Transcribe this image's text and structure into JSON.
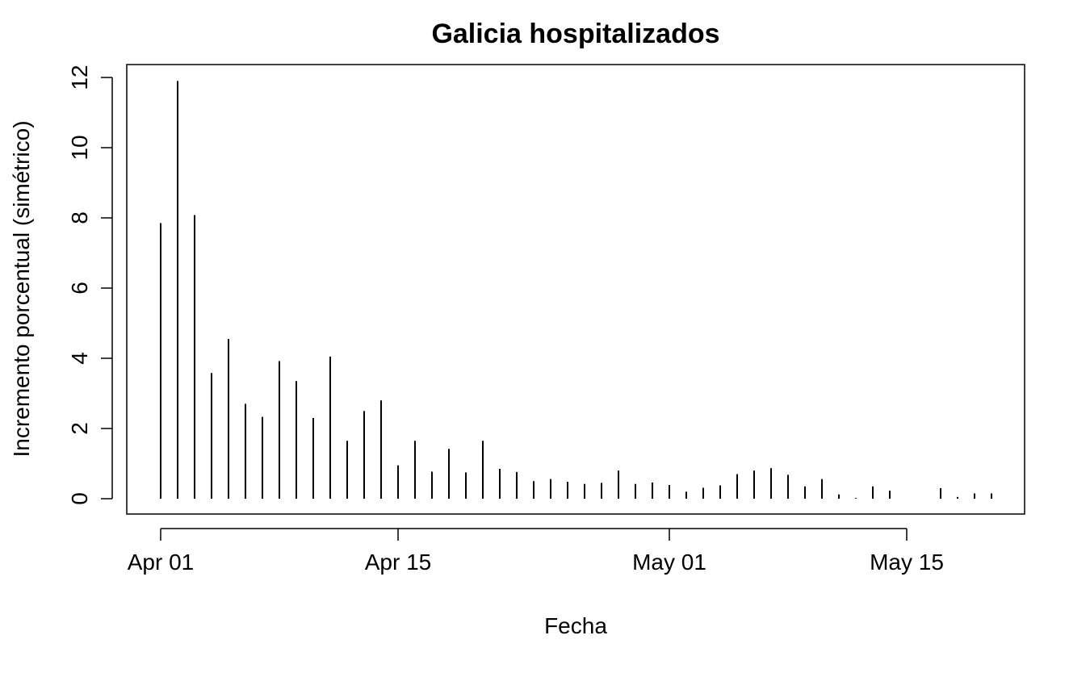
{
  "chart_data": {
    "type": "bar",
    "style": "vertical spikes (histogram-type lines)",
    "title": "Galicia hospitalizados",
    "xlabel": "Fecha",
    "ylabel": "Incremento porcentual (simétrico)",
    "xlim": [
      "2020-03-29",
      "2020-05-22"
    ],
    "ylim": [
      -0.5,
      12.4
    ],
    "grid": false,
    "legend": "none",
    "x_ticks": [
      {
        "date": "2020-04-01",
        "label": "Apr 01"
      },
      {
        "date": "2020-04-15",
        "label": "Apr 15"
      },
      {
        "date": "2020-05-01",
        "label": "May 01"
      },
      {
        "date": "2020-05-15",
        "label": "May 15"
      }
    ],
    "y_ticks": [
      0,
      2,
      4,
      6,
      8,
      10,
      12
    ],
    "y_tick_labels": [
      "0",
      "2",
      "4",
      "6",
      "8",
      "10",
      "12"
    ],
    "x": [
      "2020-04-01",
      "2020-04-02",
      "2020-04-03",
      "2020-04-04",
      "2020-04-05",
      "2020-04-06",
      "2020-04-07",
      "2020-04-08",
      "2020-04-09",
      "2020-04-10",
      "2020-04-11",
      "2020-04-12",
      "2020-04-13",
      "2020-04-14",
      "2020-04-15",
      "2020-04-16",
      "2020-04-17",
      "2020-04-18",
      "2020-04-19",
      "2020-04-20",
      "2020-04-21",
      "2020-04-22",
      "2020-04-23",
      "2020-04-24",
      "2020-04-25",
      "2020-04-26",
      "2020-04-27",
      "2020-04-28",
      "2020-04-29",
      "2020-04-30",
      "2020-05-01",
      "2020-05-02",
      "2020-05-03",
      "2020-05-04",
      "2020-05-05",
      "2020-05-06",
      "2020-05-07",
      "2020-05-08",
      "2020-05-09",
      "2020-05-10",
      "2020-05-11",
      "2020-05-12",
      "2020-05-13",
      "2020-05-14",
      "2020-05-15",
      "2020-05-16",
      "2020-05-17",
      "2020-05-18",
      "2020-05-19",
      "2020-05-20"
    ],
    "values": [
      7.85,
      11.9,
      8.08,
      3.58,
      4.55,
      2.7,
      2.33,
      3.92,
      3.35,
      2.3,
      4.05,
      1.65,
      2.5,
      2.8,
      0.95,
      1.65,
      0.77,
      1.42,
      0.75,
      1.65,
      0.85,
      0.76,
      0.5,
      0.56,
      0.48,
      0.42,
      0.45,
      0.8,
      0.42,
      0.46,
      0.39,
      0.2,
      0.31,
      0.38,
      0.7,
      0.8,
      0.87,
      0.68,
      0.35,
      0.56,
      0.12,
      0.02,
      0.35,
      0.23,
      0.0,
      0.0,
      0.3,
      0.05,
      0.15,
      0.15
    ]
  }
}
